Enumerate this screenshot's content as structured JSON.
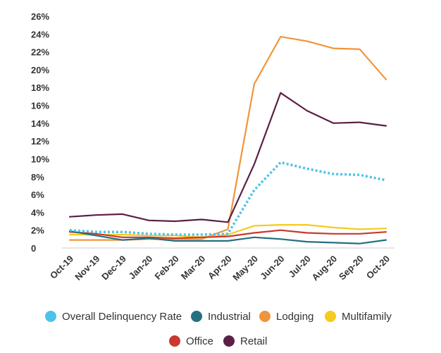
{
  "chart_data": {
    "type": "line",
    "title": "",
    "xlabel": "",
    "ylabel": "",
    "ylim": [
      0,
      26
    ],
    "y_ticks": [
      "0",
      "2%",
      "4%",
      "6%",
      "8%",
      "10%",
      "12%",
      "14%",
      "16%",
      "18%",
      "20%",
      "22%",
      "24%",
      "26%"
    ],
    "y_tick_values": [
      0,
      2,
      4,
      6,
      8,
      10,
      12,
      14,
      16,
      18,
      20,
      22,
      24,
      26
    ],
    "categories": [
      "Oct-19",
      "Nov-19",
      "Dec-19",
      "Jan-20",
      "Feb-20",
      "Mar-20",
      "Apr-20",
      "May-20",
      "Jun-20",
      "Jul-20",
      "Aug-20",
      "Sep-20",
      "Oct-20"
    ],
    "grid": false,
    "legend_position": "bottom",
    "series": [
      {
        "name": "Overall Delinquency Rate",
        "color": "#4dc3e8",
        "dashed": true,
        "values": [
          2.0,
          1.8,
          1.8,
          1.6,
          1.5,
          1.5,
          1.6,
          6.5,
          9.6,
          8.9,
          8.3,
          8.2,
          7.6
        ]
      },
      {
        "name": "Industrial",
        "color": "#266f7f",
        "dashed": false,
        "values": [
          1.9,
          1.4,
          0.9,
          1.1,
          0.8,
          0.8,
          0.8,
          1.2,
          1.0,
          0.7,
          0.6,
          0.5,
          0.9
        ]
      },
      {
        "name": "Lodging",
        "color": "#f0953a",
        "dashed": false,
        "values": [
          0.9,
          0.9,
          0.9,
          1.0,
          1.0,
          1.0,
          2.1,
          18.4,
          23.7,
          23.2,
          22.4,
          22.3,
          18.9
        ]
      },
      {
        "name": "Multifamily",
        "color": "#f5cb1c",
        "dashed": false,
        "values": [
          1.5,
          1.5,
          1.5,
          1.4,
          1.4,
          1.2,
          1.5,
          2.5,
          2.6,
          2.6,
          2.3,
          2.1,
          2.2
        ]
      },
      {
        "name": "Office",
        "color": "#c8392e",
        "dashed": false,
        "values": [
          1.8,
          1.6,
          1.2,
          1.2,
          1.1,
          1.2,
          1.3,
          1.7,
          2.0,
          1.7,
          1.6,
          1.6,
          1.8
        ]
      },
      {
        "name": "Retail",
        "color": "#5a2045",
        "dashed": false,
        "values": [
          3.5,
          3.7,
          3.8,
          3.1,
          3.0,
          3.2,
          2.9,
          9.4,
          17.4,
          15.4,
          14.0,
          14.1,
          13.7
        ]
      }
    ]
  }
}
